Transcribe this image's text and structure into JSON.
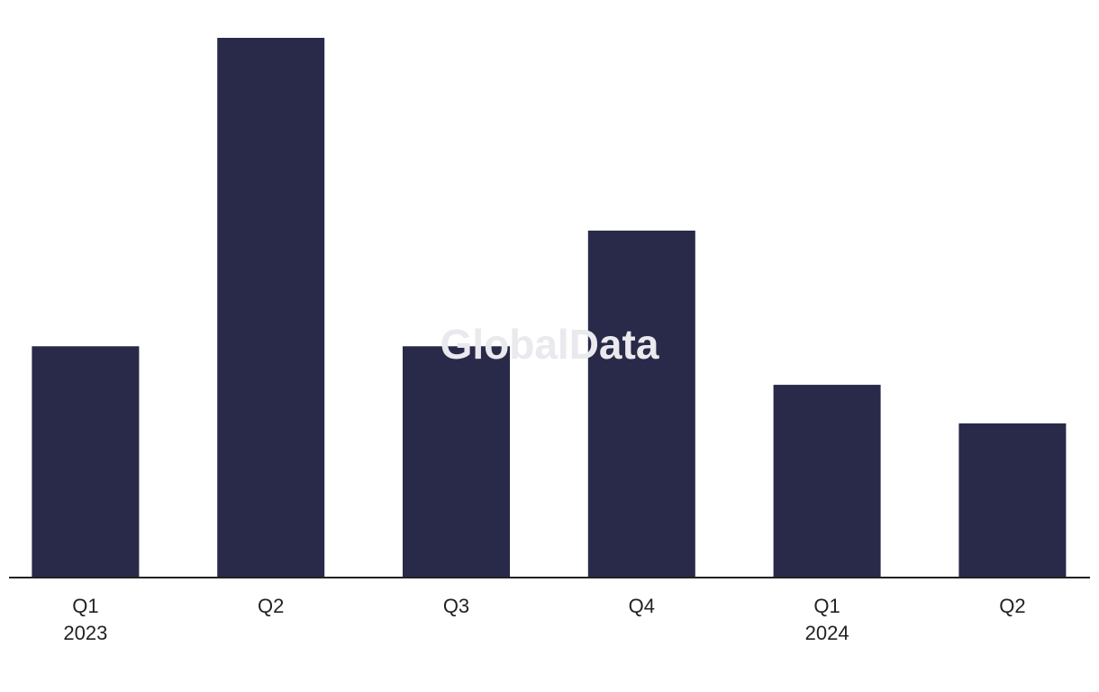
{
  "chart_data": {
    "type": "bar",
    "watermark": "GlobalData",
    "categories": [
      "Q1",
      "Q2",
      "Q3",
      "Q4",
      "Q1",
      "Q2"
    ],
    "years": [
      "2023",
      null,
      null,
      null,
      "2024",
      null
    ],
    "values": [
      6,
      14,
      6,
      9,
      5,
      4
    ],
    "color": "#292949",
    "ylim": [
      0,
      14
    ]
  }
}
